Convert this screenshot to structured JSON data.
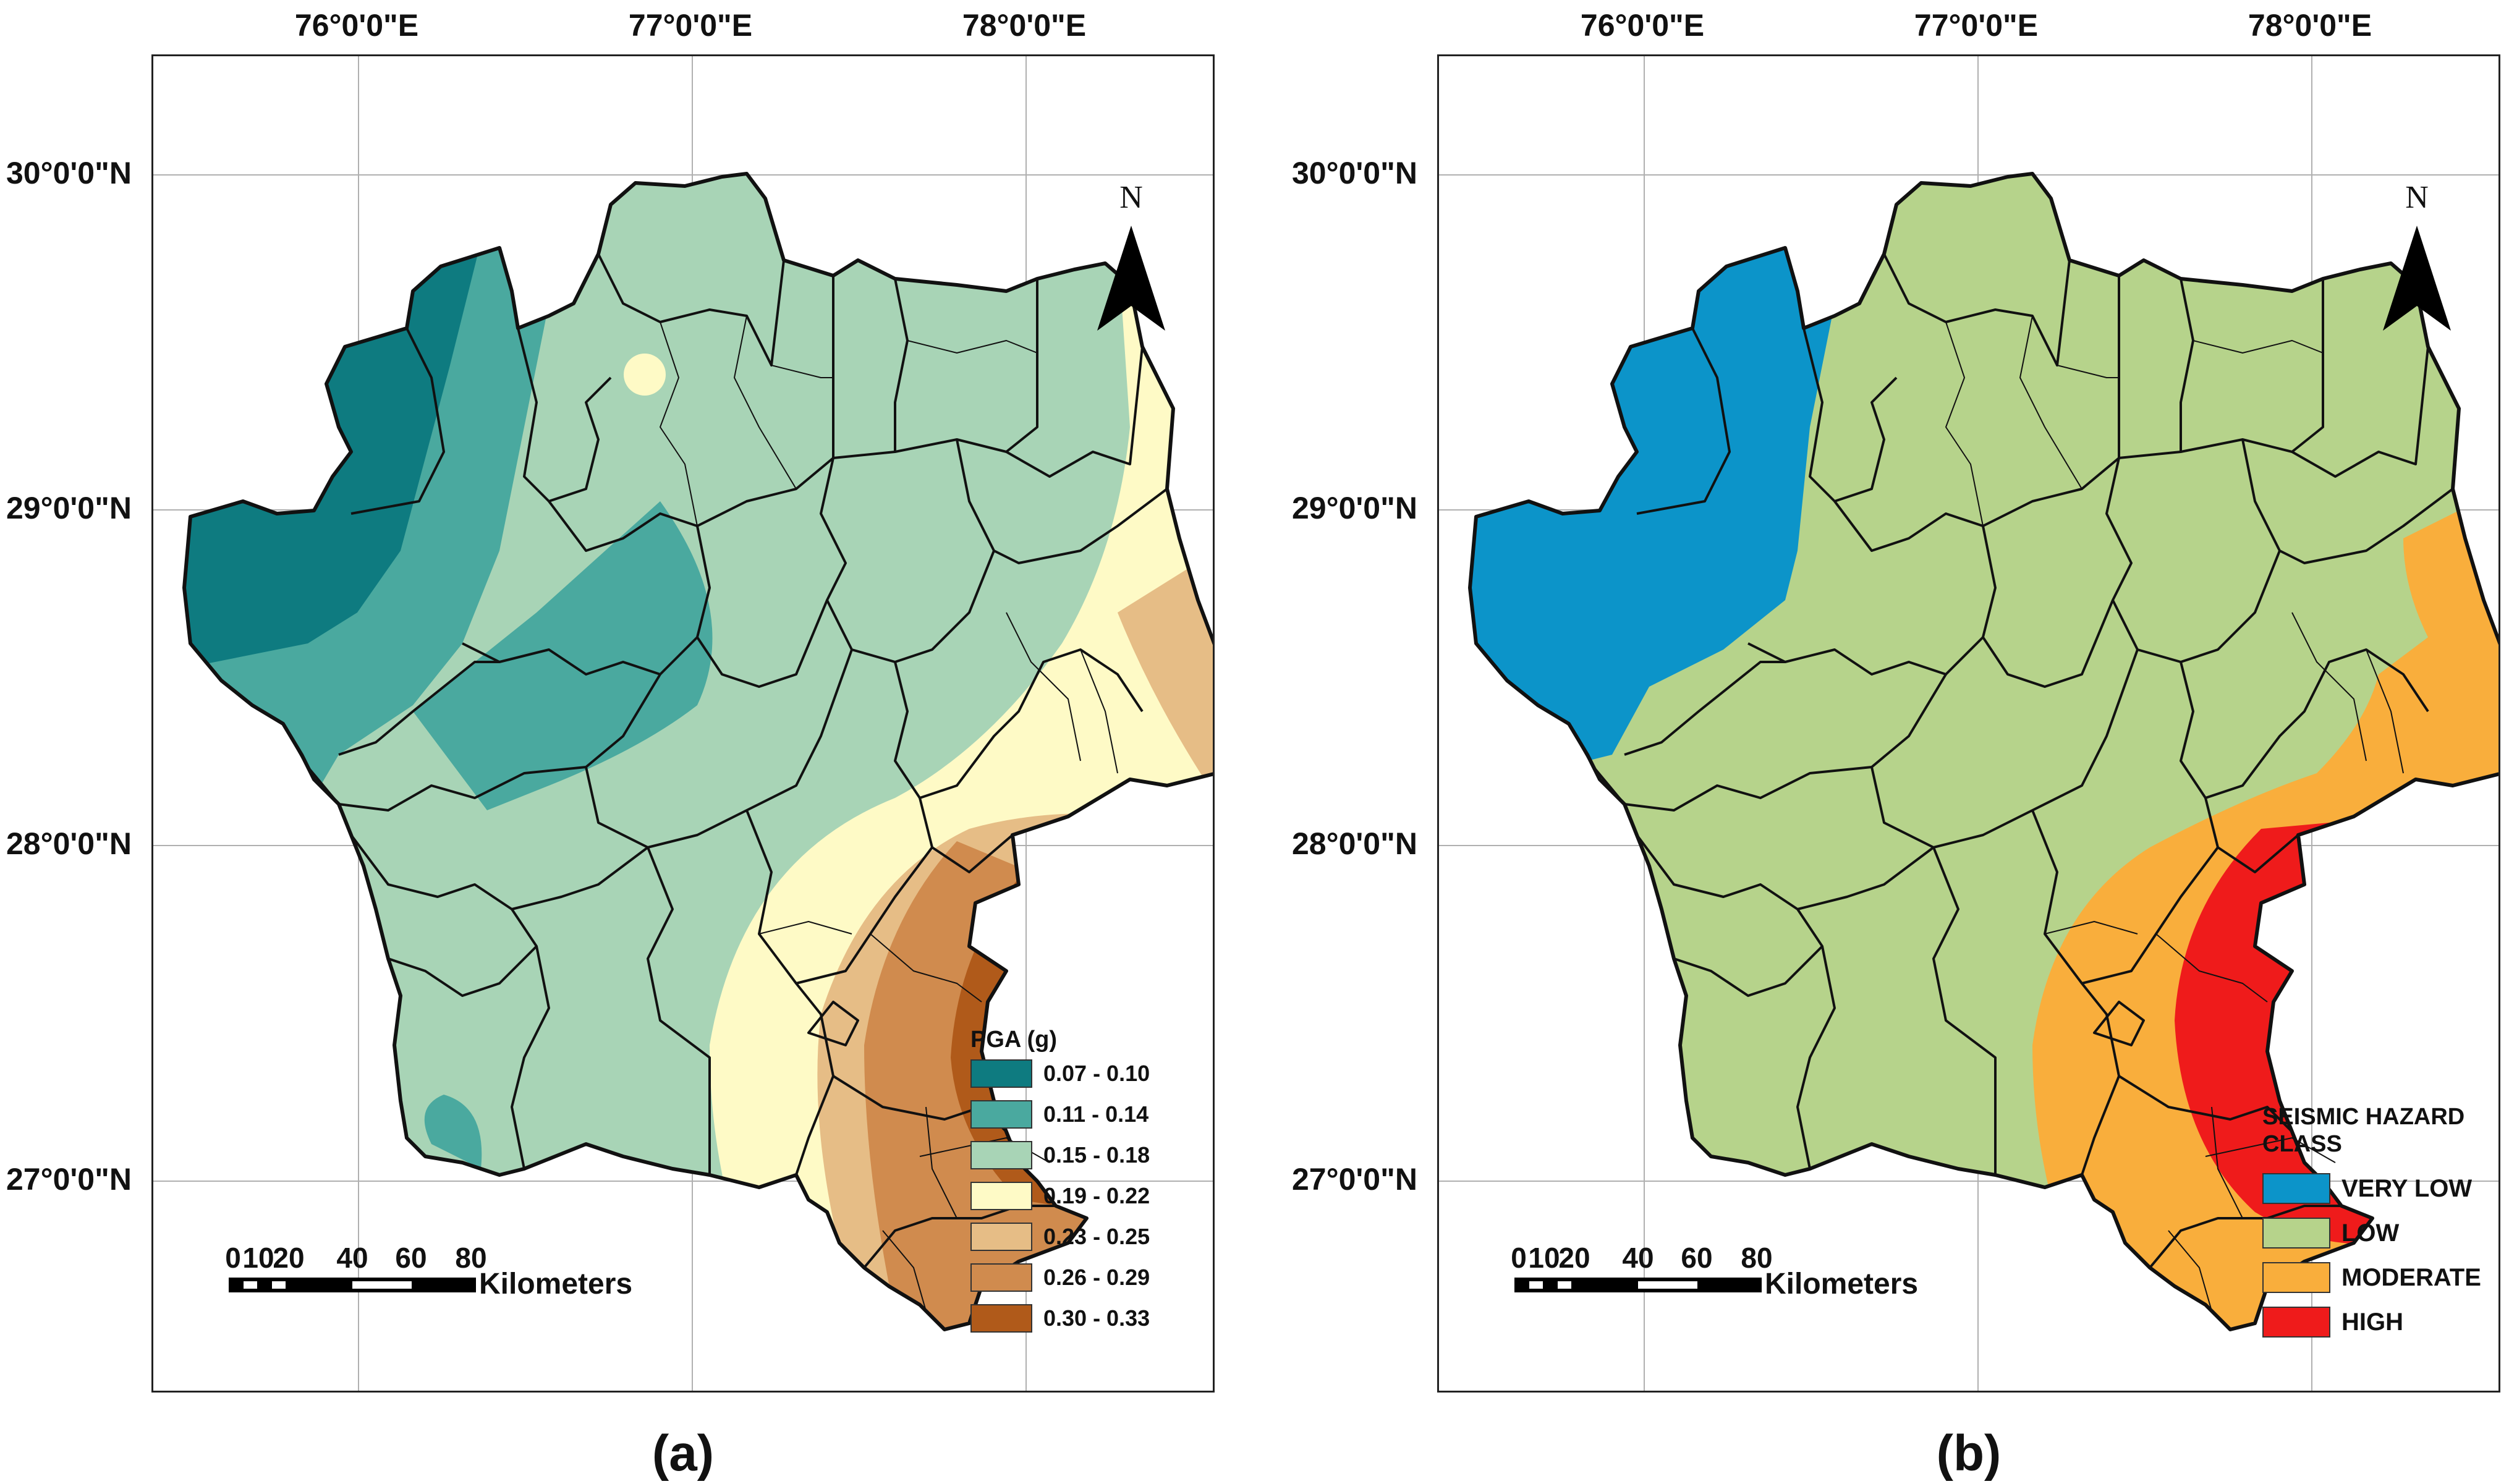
{
  "panels": [
    {
      "caption": "(a)",
      "legend": {
        "title": "PGA (g)",
        "classes": [
          {
            "label": "0.07 - 0.10",
            "color": "#0e7b80"
          },
          {
            "label": "0.11 - 0.14",
            "color": "#4aa99f"
          },
          {
            "label": "0.15 - 0.18",
            "color": "#a8d4b6"
          },
          {
            "label": "0.19 - 0.22",
            "color": "#fefac6"
          },
          {
            "label": "0.23 - 0.25",
            "color": "#e6bd86"
          },
          {
            "label": "0.26 - 0.29",
            "color": "#d08b4e"
          },
          {
            "label": "0.30 - 0.33",
            "color": "#b05a1a"
          }
        ]
      }
    },
    {
      "caption": "(b)",
      "legend": {
        "title": "SEISMIC HAZARD\nCLASS",
        "classes": [
          {
            "label": "VERY LOW",
            "color": "#0c94c9"
          },
          {
            "label": "LOW",
            "color": "#b6d38b"
          },
          {
            "label": "MODERATE",
            "color": "#f9ae3c"
          },
          {
            "label": "HIGH",
            "color": "#ef1b1b"
          }
        ]
      }
    }
  ],
  "graticule": {
    "longitudes": [
      "76°0'0\"E",
      "77°0'0\"E",
      "78°0'0\"E"
    ],
    "latitudes": [
      "30°0'0\"N",
      "29°0'0\"N",
      "28°0'0\"N",
      "27°0'0\"N"
    ]
  },
  "north_arrow": {
    "label": "N"
  },
  "scale_bar": {
    "ticks": [
      "0",
      "10",
      "20",
      "40",
      "60",
      "80"
    ],
    "unit": "Kilometers"
  },
  "colors": {
    "boundary": "#111111",
    "graticule": "#b0b0b0",
    "background": "#ffffff"
  }
}
